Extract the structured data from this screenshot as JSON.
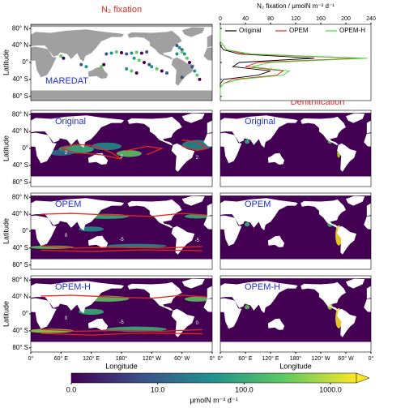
{
  "titles": {
    "fixation": "N₂ fixation",
    "denitrification": "Denitrification"
  },
  "maps": {
    "lat_label": "Latitude",
    "lon_label": "Longitude",
    "lat_ticks": [
      {
        "value": 80,
        "label": "80° N"
      },
      {
        "value": 40,
        "label": "40° N"
      },
      {
        "value": 0,
        "label": "0°"
      },
      {
        "value": -40,
        "label": "40° S"
      },
      {
        "value": -80,
        "label": "80° S"
      }
    ],
    "lon_ticks": [
      {
        "value": 0,
        "label": "0°"
      },
      {
        "value": 60,
        "label": "60° E"
      },
      {
        "value": 120,
        "label": "120° E"
      },
      {
        "value": 180,
        "label": "180°"
      },
      {
        "value": 240,
        "label": "120° W"
      },
      {
        "value": 300,
        "label": "60° W"
      },
      {
        "value": 360,
        "label": "0°"
      }
    ],
    "fixation_panels": [
      {
        "label": "MAREDAT"
      },
      {
        "label": "Original",
        "contour_labels": [
          "2",
          "2",
          "2"
        ]
      },
      {
        "label": "OPEM",
        "contour_labels": [
          "0",
          "-5",
          "-5"
        ]
      },
      {
        "label": "OPEM-H",
        "contour_labels": [
          "0",
          "-5",
          "0"
        ]
      }
    ],
    "denitrification_panels": [
      {
        "label": "Original"
      },
      {
        "label": "OPEM"
      },
      {
        "label": "OPEM-H"
      }
    ]
  },
  "chart_data": {
    "type": "line",
    "xlabel": "N₂ fixation / μmolN m⁻² d⁻¹",
    "latitudes": [
      -80,
      -70,
      -60,
      -50,
      -40,
      -30,
      -20,
      -10,
      0,
      10,
      20,
      30,
      40,
      50,
      60,
      70,
      80
    ],
    "series": [
      {
        "name": "Original",
        "color": "#000000",
        "values": [
          0,
          0,
          0,
          0,
          5,
          60,
          80,
          20,
          30,
          150,
          30,
          5,
          0,
          0,
          0,
          0,
          0
        ]
      },
      {
        "name": "OPEM",
        "color": "#e8261e",
        "values": [
          0,
          0,
          0,
          5,
          20,
          90,
          100,
          40,
          60,
          220,
          40,
          10,
          5,
          0,
          0,
          0,
          0
        ]
      },
      {
        "name": "OPEM-H",
        "color": "#3ee03e",
        "values": [
          0,
          0,
          0,
          5,
          30,
          100,
          110,
          50,
          80,
          235,
          50,
          10,
          5,
          0,
          0,
          0,
          0
        ]
      }
    ],
    "xlim": [
      0,
      240
    ],
    "xticks": [
      0,
      40,
      80,
      120,
      160,
      200,
      240
    ],
    "ylim": [
      -90,
      90
    ],
    "legend": "top"
  },
  "colorbar": {
    "ticks": [
      "0.0",
      "10.0",
      "100.0",
      "1000.0"
    ],
    "label": "μmolN m⁻² d⁻¹"
  }
}
